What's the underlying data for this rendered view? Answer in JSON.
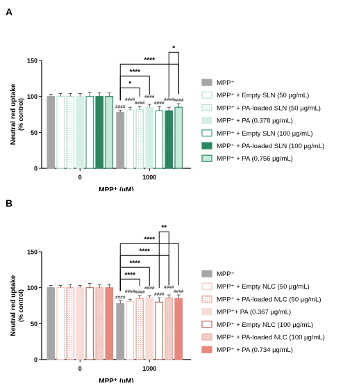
{
  "chart_data": [
    {
      "panel_label": "A",
      "type": "bar",
      "ylabel_line1": "Neutral red uptake",
      "ylabel_line2": "(% control)",
      "xlabel": "MPP⁺  (µM)",
      "ylim": [
        0,
        150
      ],
      "yticks": [
        0,
        50,
        100,
        150
      ],
      "categories": [
        "0",
        "1000"
      ],
      "legend_position": "right",
      "series": [
        {
          "name": "MPP⁺",
          "values": [
            100,
            78
          ],
          "errors": [
            3,
            3
          ],
          "fill": "#a6a6a6",
          "stroke": "#a6a6a6",
          "pattern": "solid"
        },
        {
          "name": "MPP⁺ + Empty SLN (50 µg/mL)",
          "values": [
            100,
            81
          ],
          "errors": [
            4,
            4
          ],
          "fill": "#ffffff",
          "stroke": "#bfe3d3",
          "pattern": "solid"
        },
        {
          "name": "MPP⁺ + PA-loaded SLN (50 µg/mL)",
          "values": [
            100,
            82
          ],
          "errors": [
            4,
            4
          ],
          "fill": "#ffffff",
          "stroke": "#bfe3d3",
          "pattern": "dots"
        },
        {
          "name": "MPP⁺ + PA (0.378 µg/mL)",
          "values": [
            100,
            85
          ],
          "errors": [
            4,
            4
          ],
          "fill": "#d6efe5",
          "stroke": "#d6efe5",
          "pattern": "solid"
        },
        {
          "name": "MPP⁺ + Empty SLN (100 µg/mL)",
          "values": [
            100,
            80
          ],
          "errors": [
            6,
            6
          ],
          "fill": "#ffffff",
          "stroke": "#3aa37a",
          "pattern": "solid"
        },
        {
          "name": "MPP⁺ + PA-loaded SLN (100 µg/mL)",
          "values": [
            100,
            80
          ],
          "errors": [
            5,
            5
          ],
          "fill": "#2e8b63",
          "stroke": "#2e8b63",
          "pattern": "dots"
        },
        {
          "name": "MPP⁺ + PA (0.756 µg/mL)",
          "values": [
            100,
            85
          ],
          "errors": [
            5,
            5
          ],
          "fill": "#c6e9d9",
          "stroke": "#2e8b63",
          "pattern": "solid"
        }
      ],
      "hash_marks": [
        "####",
        "####",
        "####",
        "####",
        "####",
        "####",
        "####"
      ],
      "significance": [
        {
          "from_series": 0,
          "to_series": 2,
          "label": "*"
        },
        {
          "from_series": 0,
          "to_series": 3,
          "label": "****"
        },
        {
          "from_series": 0,
          "to_series": 6,
          "label": "****"
        },
        {
          "from_series": 5,
          "to_series": 6,
          "label": "*"
        }
      ]
    },
    {
      "panel_label": "B",
      "type": "bar",
      "ylabel_line1": "Neutral red uptake",
      "ylabel_line2": "(% control)",
      "xlabel": "MPP⁺  (µM)",
      "ylim": [
        0,
        150
      ],
      "yticks": [
        0,
        50,
        100,
        150
      ],
      "categories": [
        "0",
        "1000"
      ],
      "legend_position": "right",
      "series": [
        {
          "name": "MPP⁺",
          "values": [
            100,
            78
          ],
          "errors": [
            3,
            4
          ],
          "fill": "#a6a6a6",
          "stroke": "#a6a6a6",
          "pattern": "solid"
        },
        {
          "name": "MPP⁺ + Empty NLC (50 µg/mL)",
          "values": [
            100,
            81
          ],
          "errors": [
            3,
            3
          ],
          "fill": "#ffffff",
          "stroke": "#f4c7c0",
          "pattern": "solid"
        },
        {
          "name": "MPP⁺ + PA-loaded NLC (50 µg/mL)",
          "values": [
            100,
            85
          ],
          "errors": [
            4,
            4
          ],
          "fill": "#ffffff",
          "stroke": "#eda79c",
          "pattern": "dots"
        },
        {
          "name": "MPP⁺+ PA (0.367 µg/mL)",
          "values": [
            100,
            86
          ],
          "errors": [
            3,
            3
          ],
          "fill": "#f7dcd8",
          "stroke": "#f7dcd8",
          "pattern": "solid"
        },
        {
          "name": "MPP⁺ + Empty NLC (100 µg/mL)",
          "values": [
            100,
            80
          ],
          "errors": [
            6,
            6
          ],
          "fill": "#ffffff",
          "stroke": "#b86d5f",
          "pattern": "solid"
        },
        {
          "name": "MPP⁺ + PA-loaded NLC (100 µg/mL)",
          "values": [
            100,
            86
          ],
          "errors": [
            4,
            4
          ],
          "fill": "#f4d3cd",
          "stroke": "#e7b4aa",
          "pattern": "dots"
        },
        {
          "name": "MPP⁺ + PA (0.734 µg/mL)",
          "values": [
            100,
            85
          ],
          "errors": [
            5,
            5
          ],
          "fill": "#e8877b",
          "stroke": "#e8877b",
          "pattern": "solid"
        }
      ],
      "hash_marks": [
        "####",
        "####",
        "####",
        "####",
        "####",
        "####",
        "####"
      ],
      "significance": [
        {
          "from_series": 0,
          "to_series": 2,
          "label": "****"
        },
        {
          "from_series": 0,
          "to_series": 3,
          "label": "****"
        },
        {
          "from_series": 0,
          "to_series": 5,
          "label": "****"
        },
        {
          "from_series": 0,
          "to_series": 6,
          "label": "****"
        },
        {
          "from_series": 4,
          "to_series": 5,
          "label": "**"
        }
      ]
    }
  ]
}
